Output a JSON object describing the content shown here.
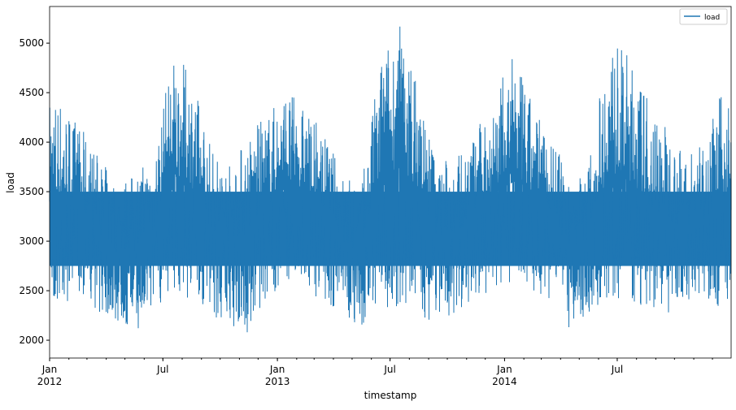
{
  "chart_data": {
    "type": "line",
    "title": "",
    "xlabel": "timestamp",
    "ylabel": "load",
    "ylim": [
      1820,
      5370
    ],
    "xlim": [
      "2012-01-01",
      "2014-12-31"
    ],
    "yticks": [
      2000,
      2500,
      3000,
      3500,
      4000,
      4500,
      5000
    ],
    "xticks": [
      {
        "date": "2012-01-01",
        "label": "Jan",
        "sublabel": "2012"
      },
      {
        "date": "2012-07-01",
        "label": "Jul",
        "sublabel": ""
      },
      {
        "date": "2013-01-01",
        "label": "Jan",
        "sublabel": "2013"
      },
      {
        "date": "2013-07-01",
        "label": "Jul",
        "sublabel": ""
      },
      {
        "date": "2014-01-01",
        "label": "Jan",
        "sublabel": "2014"
      },
      {
        "date": "2014-07-01",
        "label": "Jul",
        "sublabel": ""
      }
    ],
    "grid": false,
    "legend": {
      "position": "top-right",
      "entries": [
        "load"
      ]
    },
    "color": "#1f77b4",
    "series": [
      {
        "name": "load",
        "note_granularity": "monthly envelope of hourly values",
        "months": [
          "2012-01",
          "2012-02",
          "2012-03",
          "2012-04",
          "2012-05",
          "2012-06",
          "2012-07",
          "2012-08",
          "2012-09",
          "2012-10",
          "2012-11",
          "2012-12",
          "2013-01",
          "2013-02",
          "2013-03",
          "2013-04",
          "2013-05",
          "2013-06",
          "2013-07",
          "2013-08",
          "2013-09",
          "2013-10",
          "2013-11",
          "2013-12",
          "2014-01",
          "2014-02",
          "2014-03",
          "2014-04",
          "2014-05",
          "2014-06",
          "2014-07",
          "2014-08",
          "2014-09",
          "2014-10",
          "2014-11",
          "2014-12"
        ],
        "max": [
          4500,
          4200,
          3900,
          3600,
          3700,
          3900,
          4900,
          4700,
          4000,
          3800,
          4100,
          4300,
          4550,
          4350,
          4100,
          3700,
          3600,
          4900,
          5220,
          4600,
          3800,
          3900,
          4100,
          4500,
          4870,
          4400,
          4100,
          3600,
          3800,
          5030,
          4900,
          4500,
          4200,
          3900,
          4000,
          4500
        ],
        "min": [
          2300,
          2500,
          2300,
          2150,
          2070,
          2300,
          2500,
          2400,
          2200,
          2150,
          1980,
          2400,
          2600,
          2500,
          2400,
          2200,
          2130,
          2250,
          2350,
          2170,
          2200,
          2250,
          2400,
          2500,
          2600,
          2500,
          2400,
          2110,
          2250,
          2350,
          2400,
          2240,
          2250,
          2350,
          2400,
          2300
        ]
      }
    ]
  }
}
